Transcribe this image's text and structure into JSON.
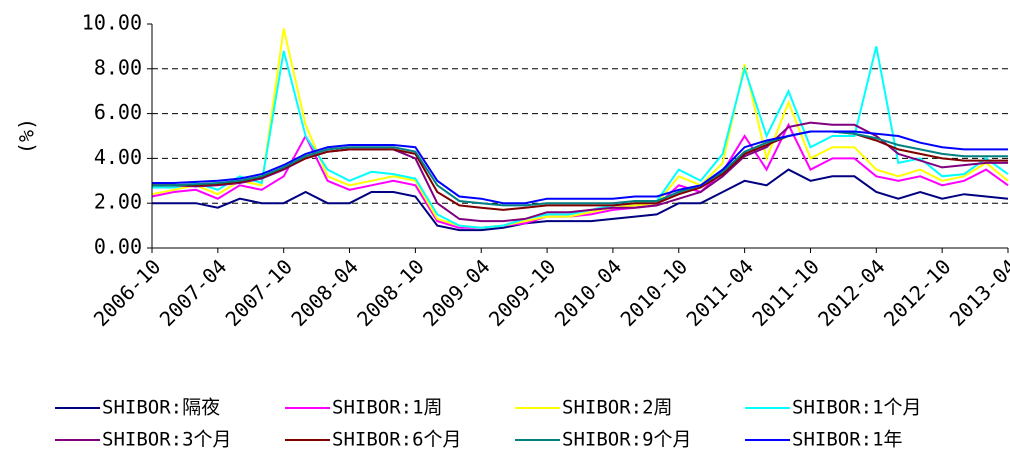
{
  "chart_data": {
    "type": "line",
    "y_label": "(%)",
    "x": [
      "2006-10",
      "2006-12",
      "2007-02",
      "2007-04",
      "2007-06",
      "2007-08",
      "2007-10",
      "2007-12",
      "2008-02",
      "2008-04",
      "2008-06",
      "2008-08",
      "2008-10",
      "2008-12",
      "2009-02",
      "2009-04",
      "2009-06",
      "2009-08",
      "2009-10",
      "2009-12",
      "2010-02",
      "2010-04",
      "2010-06",
      "2010-08",
      "2010-10",
      "2010-12",
      "2011-02",
      "2011-04",
      "2011-06",
      "2011-08",
      "2011-10",
      "2011-12",
      "2012-02",
      "2012-04",
      "2012-06",
      "2012-08",
      "2012-10",
      "2012-12",
      "2013-02",
      "2013-04"
    ],
    "xlim": [
      "2006-10",
      "2013-04"
    ],
    "xticks": [
      "2006-10",
      "2007-04",
      "2007-10",
      "2008-04",
      "2008-10",
      "2009-04",
      "2009-10",
      "2010-04",
      "2010-10",
      "2011-04",
      "2011-10",
      "2012-04",
      "2012-10",
      "2013-04"
    ],
    "ylim": [
      0,
      10
    ],
    "yticks": [
      {
        "value": 0,
        "label": "0.00"
      },
      {
        "value": 2,
        "label": "2.00"
      },
      {
        "value": 4,
        "label": "4.00"
      },
      {
        "value": 6,
        "label": "6.00"
      },
      {
        "value": 8,
        "label": "8.00"
      },
      {
        "value": 10,
        "label": "10.00"
      }
    ],
    "grid": true,
    "series": [
      {
        "name": "SHIBOR:隔夜",
        "color": "#000080",
        "values": [
          2.0,
          2.0,
          2.0,
          1.8,
          2.2,
          2.0,
          2.0,
          2.5,
          2.0,
          2.0,
          2.5,
          2.5,
          2.3,
          1.0,
          0.8,
          0.8,
          0.9,
          1.1,
          1.2,
          1.2,
          1.2,
          1.3,
          1.4,
          1.5,
          2.0,
          2.0,
          2.5,
          3.0,
          2.8,
          3.5,
          3.0,
          3.2,
          3.2,
          2.5,
          2.2,
          2.5,
          2.2,
          2.4,
          2.3,
          2.2
        ]
      },
      {
        "name": "SHIBOR:1周",
        "color": "#ff00ff",
        "values": [
          2.3,
          2.5,
          2.6,
          2.2,
          2.8,
          2.6,
          3.2,
          5.0,
          3.0,
          2.6,
          2.8,
          3.0,
          2.8,
          1.2,
          0.9,
          0.9,
          1.0,
          1.1,
          1.4,
          1.4,
          1.5,
          1.7,
          1.8,
          1.9,
          2.8,
          2.5,
          3.4,
          5.0,
          3.5,
          5.5,
          3.5,
          4.0,
          4.0,
          3.2,
          3.0,
          3.2,
          2.8,
          3.0,
          3.5,
          2.8
        ]
      },
      {
        "name": "SHIBOR:2周",
        "color": "#ffff00",
        "values": [
          2.4,
          2.6,
          2.8,
          2.4,
          3.0,
          2.8,
          9.8,
          5.5,
          3.2,
          2.8,
          3.0,
          3.2,
          3.0,
          1.3,
          1.0,
          0.9,
          1.0,
          1.2,
          1.4,
          1.4,
          1.6,
          1.8,
          1.9,
          2.0,
          3.2,
          2.8,
          3.8,
          8.2,
          4.0,
          6.5,
          4.0,
          4.5,
          4.5,
          3.5,
          3.2,
          3.5,
          3.0,
          3.2,
          3.8,
          3.0
        ]
      },
      {
        "name": "SHIBOR:1个月",
        "color": "#00ffff",
        "values": [
          2.7,
          2.7,
          2.9,
          2.6,
          3.2,
          2.9,
          8.8,
          5.0,
          3.5,
          3.0,
          3.4,
          3.3,
          3.1,
          1.5,
          1.0,
          0.9,
          1.0,
          1.3,
          1.5,
          1.5,
          1.7,
          1.9,
          2.0,
          2.1,
          3.5,
          3.0,
          4.2,
          8.0,
          5.0,
          7.0,
          4.5,
          5.0,
          5.0,
          9.0,
          3.8,
          4.0,
          3.2,
          3.3,
          4.0,
          3.3
        ]
      },
      {
        "name": "SHIBOR:3个月",
        "color": "#800080",
        "values": [
          2.8,
          2.8,
          2.75,
          2.8,
          2.9,
          3.1,
          3.5,
          4.0,
          4.3,
          4.4,
          4.4,
          4.4,
          4.0,
          2.0,
          1.3,
          1.2,
          1.2,
          1.3,
          1.6,
          1.6,
          1.7,
          1.8,
          1.8,
          1.9,
          2.2,
          2.5,
          3.2,
          4.1,
          4.5,
          5.4,
          5.6,
          5.5,
          5.5,
          5.0,
          4.2,
          3.9,
          3.6,
          3.7,
          3.8,
          3.8
        ]
      },
      {
        "name": "SHIBOR:6个月",
        "color": "#800000",
        "values": [
          2.8,
          2.8,
          2.8,
          2.85,
          2.95,
          3.15,
          3.55,
          4.0,
          4.3,
          4.4,
          4.4,
          4.4,
          4.2,
          2.5,
          1.9,
          1.8,
          1.7,
          1.8,
          1.9,
          1.9,
          1.9,
          1.9,
          2.0,
          2.0,
          2.4,
          2.7,
          3.3,
          4.2,
          4.6,
          5.0,
          5.2,
          5.2,
          5.1,
          4.8,
          4.4,
          4.2,
          4.0,
          3.9,
          3.9,
          3.9
        ]
      },
      {
        "name": "SHIBOR:9个月",
        "color": "#008080",
        "values": [
          2.8,
          2.8,
          2.85,
          2.9,
          3.0,
          3.2,
          3.6,
          4.1,
          4.4,
          4.5,
          4.5,
          4.5,
          4.3,
          2.8,
          2.1,
          2.0,
          1.9,
          1.9,
          2.0,
          2.0,
          2.0,
          2.0,
          2.1,
          2.1,
          2.5,
          2.8,
          3.4,
          4.3,
          4.7,
          5.0,
          5.2,
          5.2,
          5.1,
          4.9,
          4.6,
          4.4,
          4.2,
          4.1,
          4.1,
          4.1
        ]
      },
      {
        "name": "SHIBOR:1年",
        "color": "#0000ff",
        "values": [
          2.9,
          2.9,
          2.95,
          3.0,
          3.1,
          3.3,
          3.7,
          4.2,
          4.5,
          4.6,
          4.6,
          4.6,
          4.5,
          3.0,
          2.3,
          2.2,
          2.0,
          2.0,
          2.2,
          2.2,
          2.2,
          2.2,
          2.3,
          2.3,
          2.6,
          2.8,
          3.5,
          4.5,
          4.8,
          5.0,
          5.2,
          5.2,
          5.2,
          5.1,
          5.0,
          4.7,
          4.5,
          4.4,
          4.4,
          4.4
        ]
      }
    ]
  }
}
